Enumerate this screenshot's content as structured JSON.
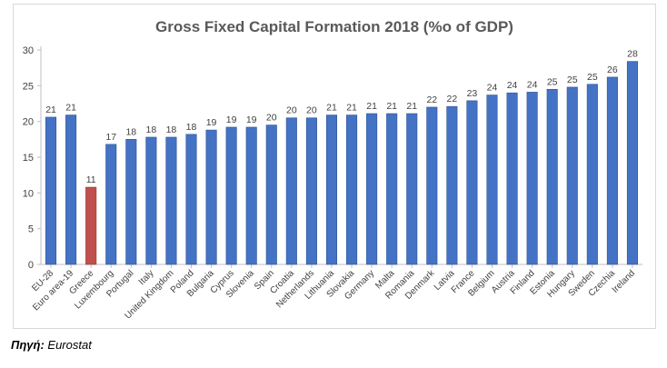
{
  "chart_data": {
    "type": "bar",
    "title": "Gross Fixed Capital Formation 2018 (%o of GDP)",
    "categories": [
      "EU-28",
      "Euro area-19",
      "Greece",
      "Luxembourg",
      "Portugal",
      "Italy",
      "United Kingdom",
      "Poland",
      "Bulgaria",
      "Cyprus",
      "Slovenia",
      "Spain",
      "Croatia",
      "Netherlands",
      "Lithuania",
      "Slovakia",
      "Germany",
      "Malta",
      "Romania",
      "Denmark",
      "Latvia",
      "France",
      "Belgium",
      "Austria",
      "Finland",
      "Estonia",
      "Hungary",
      "Sweden",
      "Czechia",
      "Ireland"
    ],
    "values": [
      20.6,
      20.9,
      10.8,
      16.8,
      17.5,
      17.8,
      17.8,
      18.2,
      18.8,
      19.2,
      19.2,
      19.5,
      20.5,
      20.5,
      20.9,
      20.9,
      21.1,
      21.1,
      21.1,
      22.0,
      22.1,
      22.9,
      23.7,
      24.0,
      24.1,
      24.5,
      24.8,
      25.2,
      26.2,
      28.4
    ],
    "value_labels": [
      "21",
      "21",
      "11",
      "17",
      "18",
      "18",
      "18",
      "18",
      "19",
      "19",
      "19",
      "20",
      "20",
      "20",
      "21",
      "21",
      "21",
      "21",
      "21",
      "22",
      "22",
      "23",
      "24",
      "24",
      "24",
      "25",
      "25",
      "25",
      "26",
      "28"
    ],
    "highlight_category": "Greece",
    "ylim": [
      0,
      30
    ],
    "yticks": [
      0,
      5,
      10,
      15,
      20,
      25,
      30
    ],
    "xlabel": "",
    "ylabel": "",
    "grid": false,
    "legend": false,
    "colors": {
      "bar": "#4472c4",
      "bar_highlight": "#c0504d",
      "axis": "#bfbfbf",
      "text": "#404040",
      "title": "#595959"
    }
  },
  "source": {
    "label": "Πηγή:",
    "value": "Eurostat"
  }
}
